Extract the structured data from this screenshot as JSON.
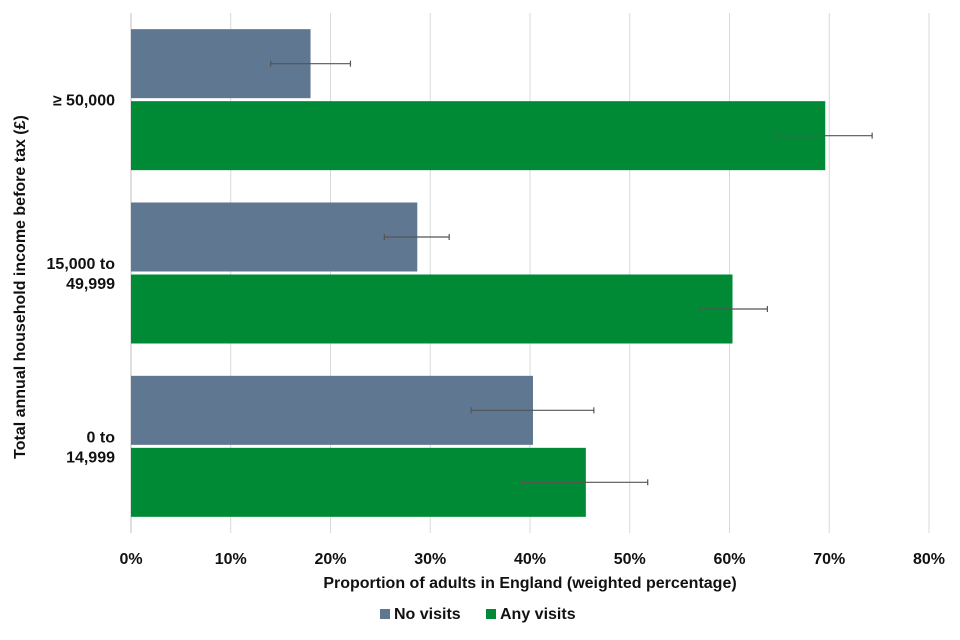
{
  "chart_data": {
    "type": "bar",
    "orientation": "horizontal",
    "title": "",
    "xlabel": "Proportion of adults in England (weighted percentage)",
    "ylabel": "Total annual household income before tax (£)",
    "xlim": [
      0,
      80
    ],
    "x_ticks": [
      "0%",
      "10%",
      "20%",
      "30%",
      "40%",
      "50%",
      "60%",
      "70%",
      "80%"
    ],
    "grid": true,
    "legend_position": "bottom",
    "categories": [
      {
        "lines": [
          "≥ 50,000"
        ]
      },
      {
        "lines": [
          "15,000 to",
          "49,999"
        ]
      },
      {
        "lines": [
          "0 to",
          "14,999"
        ]
      }
    ],
    "series": [
      {
        "name": "No visits",
        "color": "#5f7790",
        "values": [
          18.0,
          28.7,
          40.3
        ],
        "error_low": [
          14.0,
          25.4,
          34.1
        ],
        "error_high": [
          22.0,
          31.9,
          46.4
        ]
      },
      {
        "name": "Any visits",
        "color": "#008a36",
        "values": [
          69.6,
          60.3,
          45.6
        ],
        "error_low": [
          64.6,
          57.0,
          39.2
        ],
        "error_high": [
          74.3,
          63.8,
          51.8
        ]
      }
    ]
  }
}
